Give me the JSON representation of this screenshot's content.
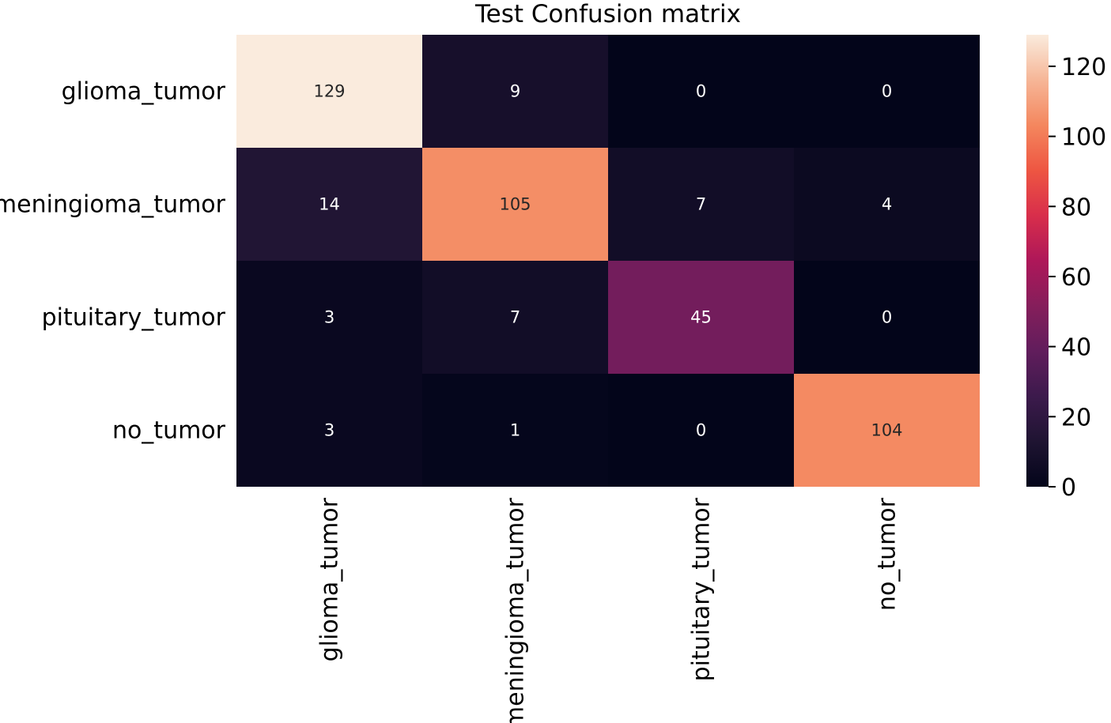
{
  "chart_data": {
    "type": "heatmap",
    "title": "Test Confusion matrix",
    "row_labels": [
      "glioma_tumor",
      "meningioma_tumor",
      "pituitary_tumor",
      "no_tumor"
    ],
    "col_labels": [
      "glioma_tumor",
      "meningioma_tumor",
      "pituitary_tumor",
      "no_tumor"
    ],
    "values": [
      [
        129,
        9,
        0,
        0
      ],
      [
        14,
        105,
        7,
        4
      ],
      [
        3,
        7,
        45,
        0
      ],
      [
        3,
        1,
        0,
        104
      ]
    ],
    "value_labels": [
      [
        "129",
        "9",
        "0",
        "0"
      ],
      [
        "14",
        "105",
        "7",
        "4"
      ],
      [
        "3",
        "7",
        "45",
        "0"
      ],
      [
        "3",
        "1",
        "0",
        "104"
      ]
    ],
    "colorbar": {
      "range": [
        0,
        129
      ],
      "ticks": [
        0,
        20,
        40,
        60,
        80,
        100,
        120
      ],
      "tick_labels": [
        "0",
        "20",
        "40",
        "60",
        "80",
        "100",
        "120"
      ],
      "colormap": "rocket"
    },
    "xlabel": "",
    "ylabel": ""
  }
}
